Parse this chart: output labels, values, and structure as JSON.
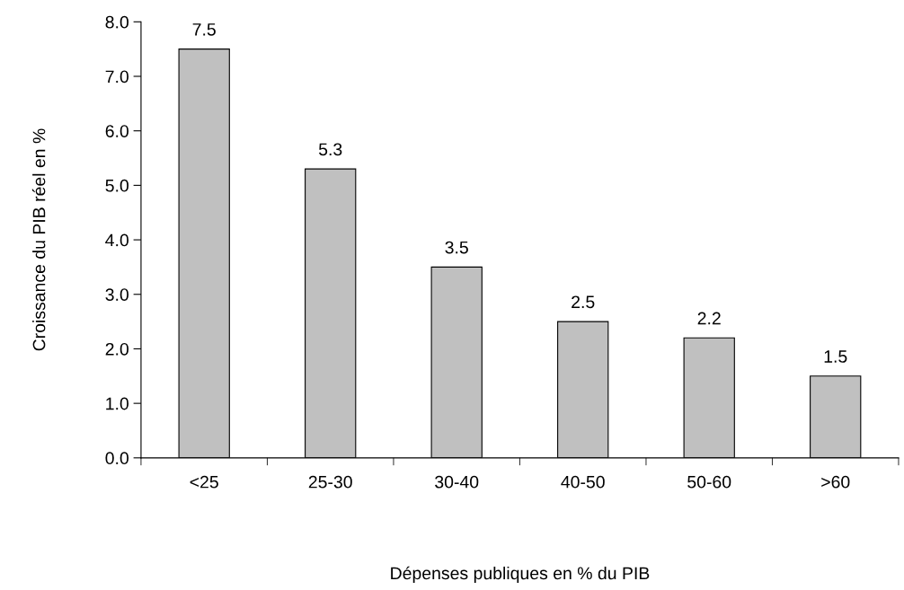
{
  "chart_data": {
    "type": "bar",
    "xlabel": "Dépenses publiques en % du PIB",
    "ylabel": "Croissance du PIB réel en %",
    "categories": [
      "<25",
      "25-30",
      "30-40",
      "40-50",
      "50-60",
      ">60"
    ],
    "values": [
      7.5,
      5.3,
      3.5,
      2.5,
      2.2,
      1.5
    ],
    "color": "#c0c0c0",
    "ylim": [
      0,
      8
    ],
    "yticks": [
      {
        "value": 0,
        "label": "0.0"
      },
      {
        "value": 1,
        "label": "1.0"
      },
      {
        "value": 2,
        "label": "2.0"
      },
      {
        "value": 3,
        "label": "3.0"
      },
      {
        "value": 4,
        "label": "4.0"
      },
      {
        "value": 5,
        "label": "5.0"
      },
      {
        "value": 6,
        "label": "6.0"
      },
      {
        "value": 7,
        "label": "7.0"
      },
      {
        "value": 8,
        "label": "8.0"
      }
    ],
    "data_labels": true,
    "grid": false,
    "legend": false
  }
}
